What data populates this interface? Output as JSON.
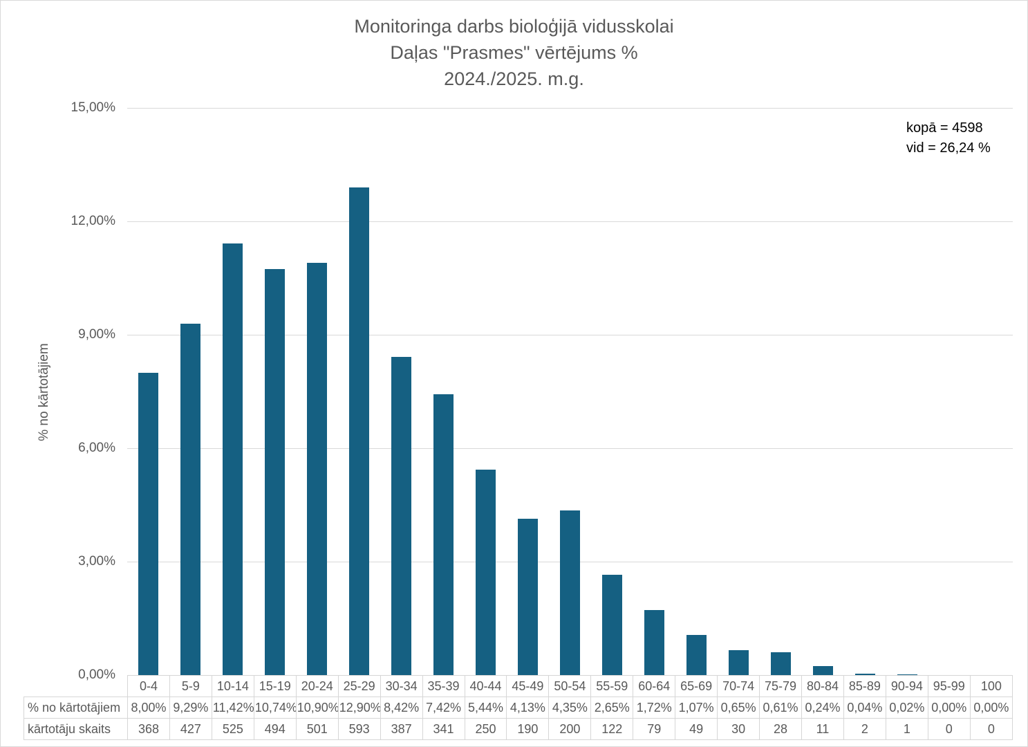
{
  "title": {
    "line1": "Monitoringa darbs bioloģijā vidusskolai",
    "line2": "Daļas \"Prasmes\" vērtējums %",
    "line3": "2024./2025. m.g."
  },
  "annotation": {
    "total": "kopā = 4598",
    "average": "vid = 26,24 %"
  },
  "y_axis": {
    "title": "% no kārtotājiem",
    "tick_values": [
      0,
      3,
      6,
      9,
      12,
      15
    ],
    "tick_labels": [
      "0,00%",
      "3,00%",
      "6,00%",
      "9,00%",
      "12,00%",
      "15,00%"
    ]
  },
  "table": {
    "percent_row_header": "% no kārtotājiem",
    "count_row_header": "kārtotāju skaits"
  },
  "colors": {
    "bar": "#156082",
    "text": "#595959",
    "grid": "#d9d9d9"
  },
  "chart_data": {
    "type": "bar",
    "title": "Monitoringa darbs bioloģijā vidusskolai — Daļas \"Prasmes\" vērtējums % — 2024./2025. m.g.",
    "xlabel": "",
    "ylabel": "% no kārtotājiem",
    "ylim": [
      0,
      15
    ],
    "yticks": [
      0,
      3,
      6,
      9,
      12,
      15
    ],
    "grid": true,
    "legend": false,
    "categories": [
      "0-4",
      "5-9",
      "10-14",
      "15-19",
      "20-24",
      "25-29",
      "30-34",
      "35-39",
      "40-44",
      "45-49",
      "50-54",
      "55-59",
      "60-64",
      "65-69",
      "70-74",
      "75-79",
      "80-84",
      "85-89",
      "90-94",
      "95-99",
      "100"
    ],
    "series": [
      {
        "name": "% no kārtotājiem",
        "values": [
          8.0,
          9.29,
          11.42,
          10.74,
          10.9,
          12.9,
          8.42,
          7.42,
          5.44,
          4.13,
          4.35,
          2.65,
          1.72,
          1.07,
          0.65,
          0.61,
          0.24,
          0.04,
          0.02,
          0.0,
          0.0
        ]
      },
      {
        "name": "kārtotāju skaits",
        "values": [
          368,
          427,
          525,
          494,
          501,
          593,
          387,
          341,
          250,
          190,
          200,
          122,
          79,
          49,
          30,
          28,
          11,
          2,
          1,
          0,
          0
        ]
      }
    ],
    "percent_labels": [
      "8,00%",
      "9,29%",
      "11,42%",
      "10,74%",
      "10,90%",
      "12,90%",
      "8,42%",
      "7,42%",
      "5,44%",
      "4,13%",
      "4,35%",
      "2,65%",
      "1,72%",
      "1,07%",
      "0,65%",
      "0,61%",
      "0,24%",
      "0,04%",
      "0,02%",
      "0,00%",
      "0,00%"
    ],
    "count_labels": [
      "368",
      "427",
      "525",
      "494",
      "501",
      "593",
      "387",
      "341",
      "250",
      "190",
      "200",
      "122",
      "79",
      "49",
      "30",
      "28",
      "11",
      "2",
      "1",
      "0",
      "0"
    ],
    "annotations": [
      "kopā = 4598",
      "vid = 26,24 %"
    ]
  }
}
